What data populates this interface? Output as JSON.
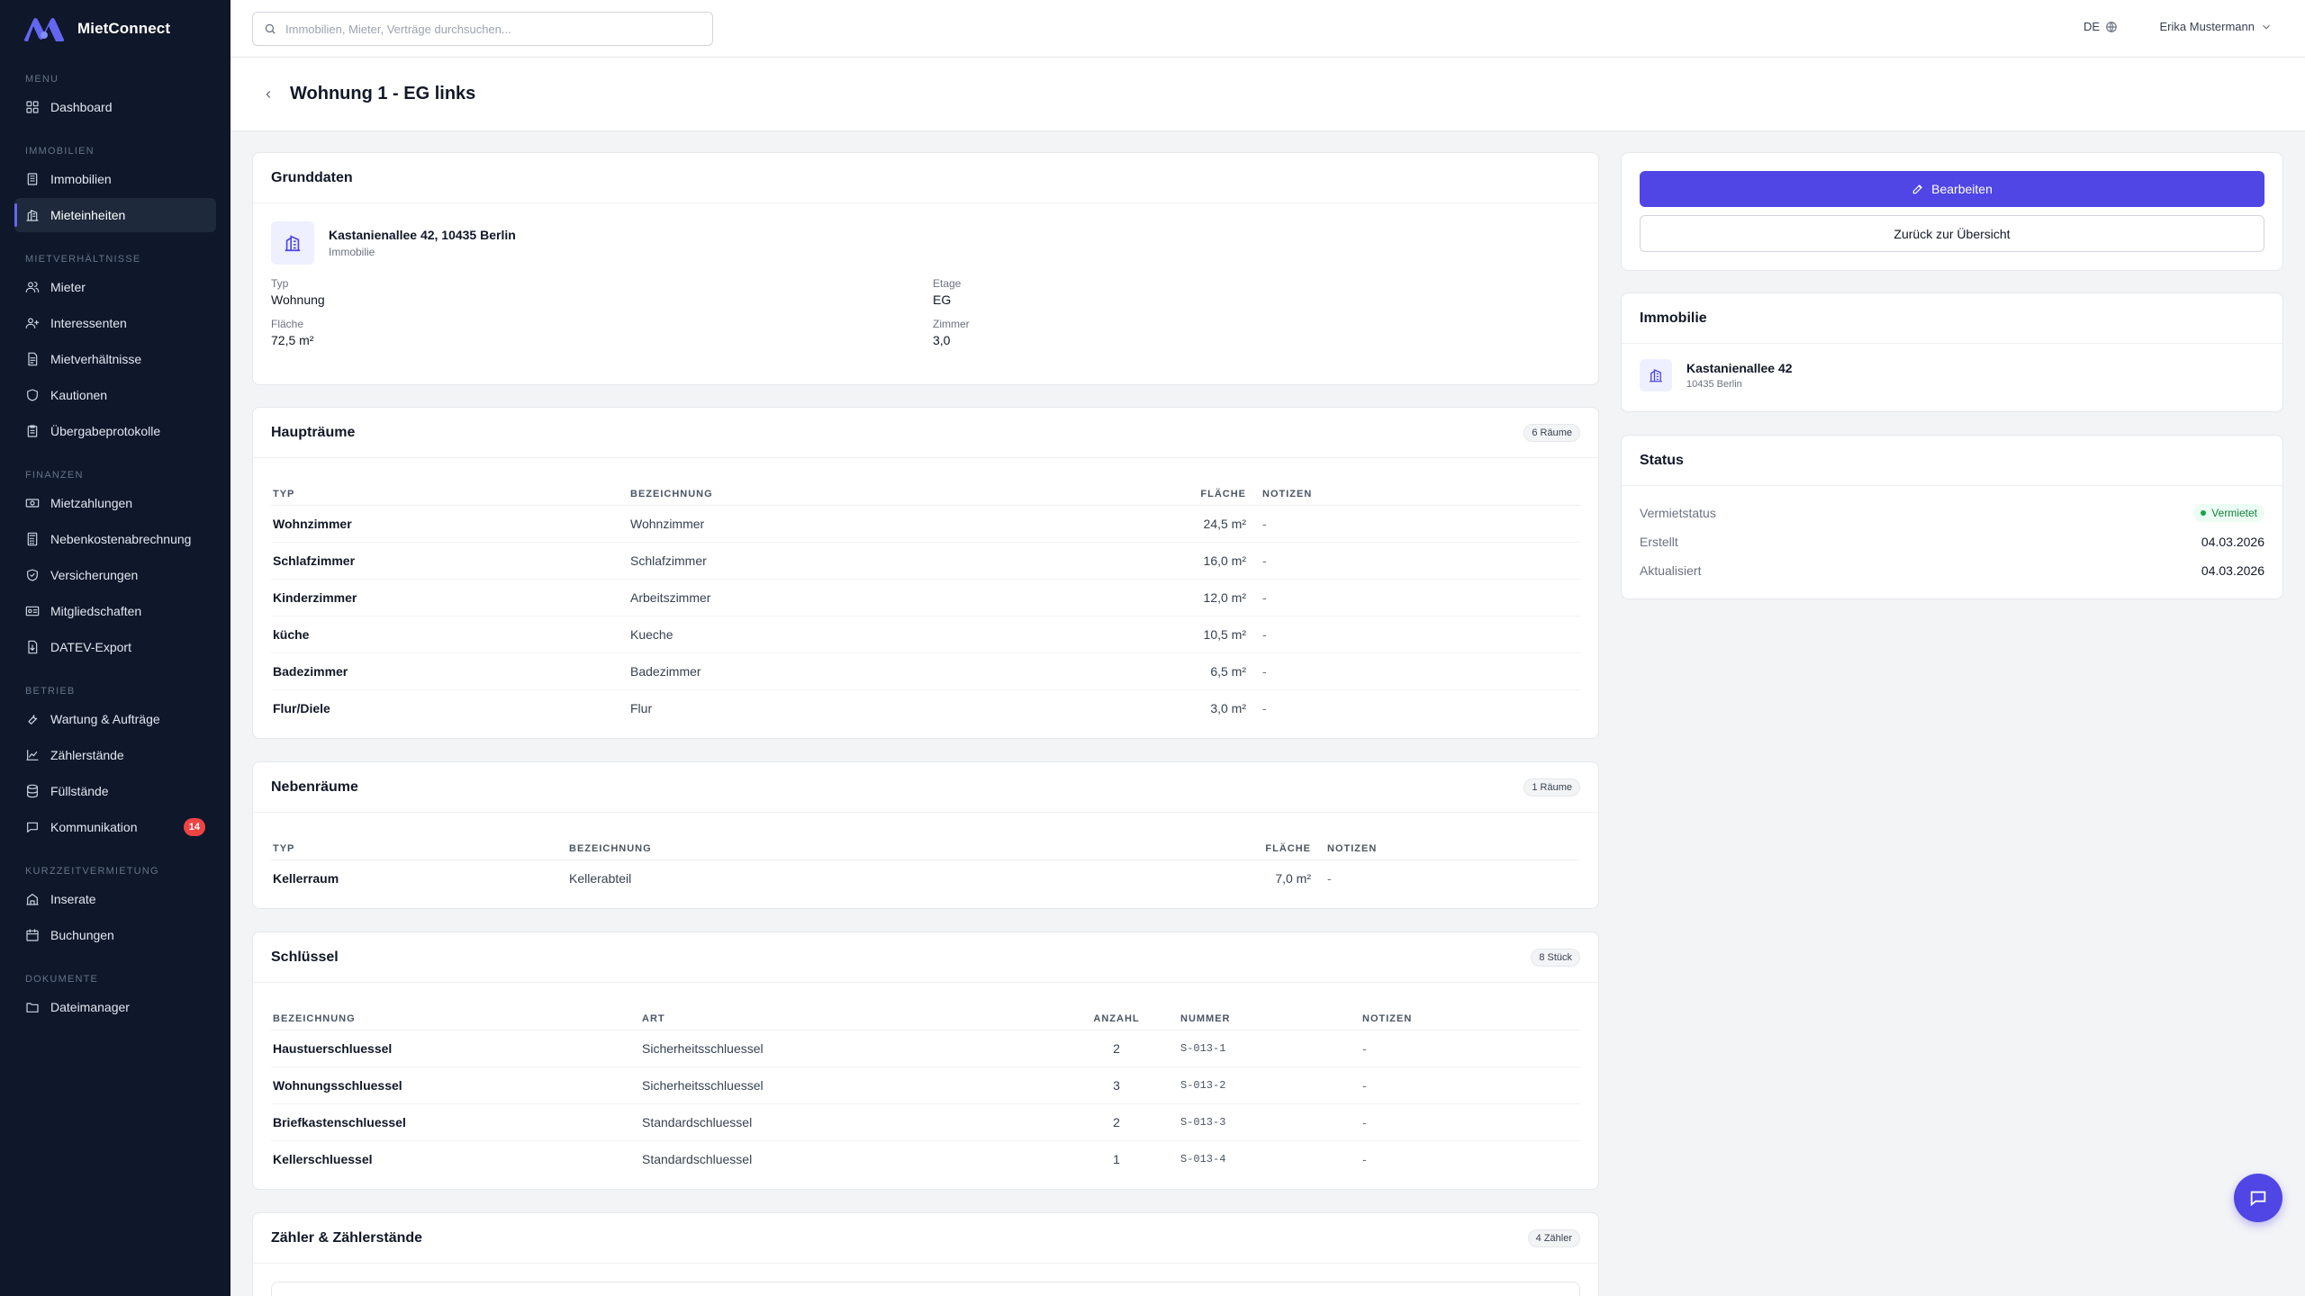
{
  "app": {
    "name": "MietConnect"
  },
  "search": {
    "placeholder": "Immobilien, Mieter, Verträge durchsuchen..."
  },
  "topbar": {
    "language": "DE",
    "user_name": "Erika Mustermann"
  },
  "sidebar": {
    "sections": [
      {
        "label": "Menu",
        "items": [
          {
            "label": "Dashboard",
            "icon": "dashboard-icon"
          }
        ]
      },
      {
        "label": "Immobilien",
        "items": [
          {
            "label": "Immobilien",
            "icon": "building-icon"
          },
          {
            "label": "Mieteinheiten",
            "icon": "units-icon",
            "active": true
          }
        ]
      },
      {
        "label": "Mietverhältnisse",
        "items": [
          {
            "label": "Mieter",
            "icon": "users-icon"
          },
          {
            "label": "Interessenten",
            "icon": "user-plus-icon"
          },
          {
            "label": "Mietverhältnisse",
            "icon": "contract-icon"
          },
          {
            "label": "Kautionen",
            "icon": "shield-icon"
          },
          {
            "label": "Übergabeprotokolle",
            "icon": "clipboard-icon"
          }
        ]
      },
      {
        "label": "Finanzen",
        "items": [
          {
            "label": "Mietzahlungen",
            "icon": "money-icon"
          },
          {
            "label": "Nebenkostenabrechnung",
            "icon": "calculator-icon"
          },
          {
            "label": "Versicherungen",
            "icon": "shield-check-icon"
          },
          {
            "label": "Mitgliedschaften",
            "icon": "id-card-icon"
          },
          {
            "label": "DATEV-Export",
            "icon": "export-icon"
          }
        ]
      },
      {
        "label": "Betrieb",
        "items": [
          {
            "label": "Wartung & Aufträge",
            "icon": "wrench-icon"
          },
          {
            "label": "Zählerstände",
            "icon": "meter-icon"
          },
          {
            "label": "Füllstände",
            "icon": "database-icon"
          },
          {
            "label": "Kommunikation",
            "icon": "chat-icon",
            "badge": "14"
          }
        ]
      },
      {
        "label": "Kurzzeitvermietung",
        "items": [
          {
            "label": "Inserate",
            "icon": "listing-icon"
          },
          {
            "label": "Buchungen",
            "icon": "calendar-icon"
          }
        ]
      },
      {
        "label": "Dokumente",
        "items": [
          {
            "label": "Dateimanager",
            "icon": "folder-icon"
          }
        ]
      }
    ]
  },
  "page": {
    "title": "Wohnung 1 - EG links"
  },
  "grunddaten": {
    "title": "Grunddaten",
    "property_address": "Kastanienallee 42, 10435 Berlin",
    "property_type_label": "Immobilie",
    "fields": [
      {
        "label": "Typ",
        "value": "Wohnung"
      },
      {
        "label": "Etage",
        "value": "EG"
      },
      {
        "label": "Fläche",
        "value": "72,5 m²"
      },
      {
        "label": "Zimmer",
        "value": "3,0"
      }
    ]
  },
  "hauptraeume": {
    "title": "Haupträume",
    "count": "6 Räume",
    "columns": [
      "Typ",
      "Bezeichnung",
      "Fläche",
      "Notizen"
    ],
    "rows": [
      [
        "Wohnzimmer",
        "Wohnzimmer",
        "24,5 m²",
        "-"
      ],
      [
        "Schlafzimmer",
        "Schlafzimmer",
        "16,0 m²",
        "-"
      ],
      [
        "Kinderzimmer",
        "Arbeitszimmer",
        "12,0 m²",
        "-"
      ],
      [
        "küche",
        "Kueche",
        "10,5 m²",
        "-"
      ],
      [
        "Badezimmer",
        "Badezimmer",
        "6,5 m²",
        "-"
      ],
      [
        "Flur/Diele",
        "Flur",
        "3,0 m²",
        "-"
      ]
    ]
  },
  "nebenraeume": {
    "title": "Nebenräume",
    "count": "1 Räume",
    "columns": [
      "Typ",
      "Bezeichnung",
      "Fläche",
      "Notizen"
    ],
    "rows": [
      [
        "Kellerraum",
        "Kellerabteil",
        "7,0 m²",
        "-"
      ]
    ]
  },
  "schluessel": {
    "title": "Schlüssel",
    "count": "8 Stück",
    "columns": [
      "Bezeichnung",
      "Art",
      "Anzahl",
      "Nummer",
      "Notizen"
    ],
    "rows": [
      [
        "Haustuerschluessel",
        "Sicherheitsschluessel",
        "2",
        "S-013-1",
        "-"
      ],
      [
        "Wohnungsschluessel",
        "Sicherheitsschluessel",
        "3",
        "S-013-2",
        "-"
      ],
      [
        "Briefkastenschluessel",
        "Standardschluessel",
        "2",
        "S-013-3",
        "-"
      ],
      [
        "Kellerschluessel",
        "Standardschluessel",
        "1",
        "S-013-4",
        "-"
      ]
    ]
  },
  "zaehler": {
    "title": "Zähler & Zählerstände",
    "count": "4 Zähler"
  },
  "actions": {
    "edit_label": "Bearbeiten",
    "back_label": "Zurück zur Übersicht"
  },
  "immobilie": {
    "title": "Immobilie",
    "street": "Kastanienallee 42",
    "city": "10435 Berlin"
  },
  "status": {
    "title": "Status",
    "rows": [
      {
        "label": "Vermietstatus",
        "value": "Vermietet"
      },
      {
        "label": "Erstellt",
        "value": "04.03.2026"
      },
      {
        "label": "Aktualisiert",
        "value": "04.03.2026"
      }
    ]
  },
  "colors": {
    "accent": "#4f46e5",
    "sidebar_bg": "#0f172a",
    "badge_red": "#ef4444",
    "status_green": "#16a34a"
  }
}
